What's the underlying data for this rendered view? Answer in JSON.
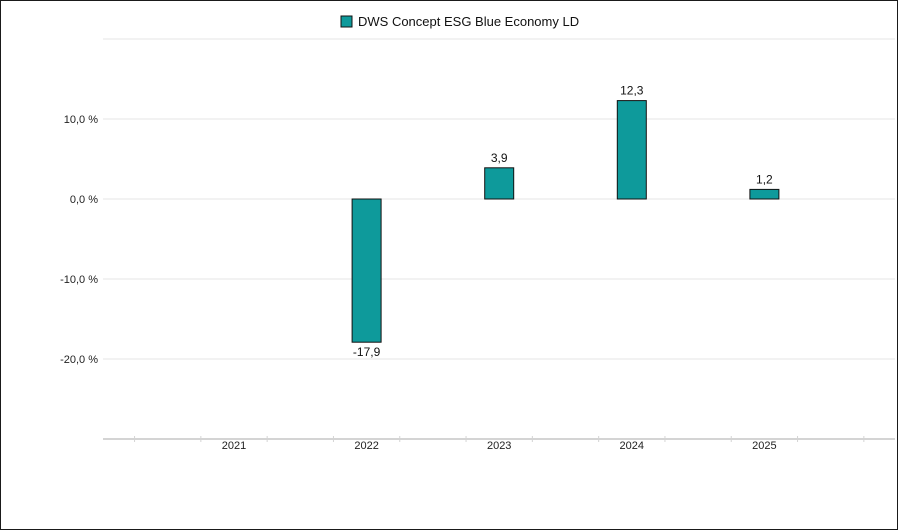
{
  "chart_data": {
    "type": "bar",
    "categories": [
      "2021",
      "2022",
      "2023",
      "2024",
      "2025"
    ],
    "series": [
      {
        "name": "DWS Concept ESG Blue Economy LD",
        "values": [
          null,
          -17.9,
          3.9,
          12.3,
          1.2
        ],
        "labels": [
          "",
          "-17,9",
          "3,9",
          "12,3",
          "1,2"
        ],
        "color": "#0e9a9b"
      }
    ],
    "yticks": [
      10,
      0,
      -10,
      -20
    ],
    "ytick_labels": [
      "10,0 %",
      "0,0 %",
      "-10,0 %",
      "-20,0 %"
    ],
    "ylim": [
      -30,
      20
    ],
    "grid": true,
    "legend": "top-center"
  }
}
